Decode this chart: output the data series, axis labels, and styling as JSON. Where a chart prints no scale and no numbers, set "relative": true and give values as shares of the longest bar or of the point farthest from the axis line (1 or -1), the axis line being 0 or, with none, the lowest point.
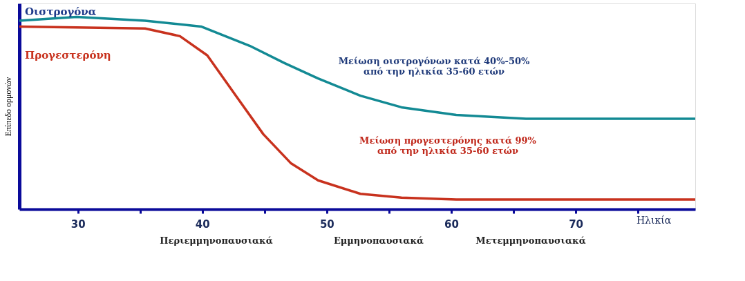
{
  "chart_data": {
    "type": "line",
    "relative": true,
    "xlabel": "Ηλικία",
    "ylabel": "Επίπεδο ορμονών",
    "xlim": [
      25.3,
      79.6
    ],
    "xticks": [
      30,
      {
        "value": 35,
        "label": null
      },
      40,
      {
        "value": 45,
        "label": null
      },
      50,
      {
        "value": 55,
        "label": null
      },
      60,
      {
        "value": 65,
        "label": null
      },
      70,
      {
        "value": 75,
        "label": null
      }
    ],
    "grid": false,
    "legend": false,
    "marker": "none",
    "line_style": "solid",
    "series": [
      {
        "name": "Οιστρογόνα",
        "color": "#138a94",
        "x": [
          25.3,
          29.9,
          35.4,
          39.9,
          43.8,
          46.6,
          49.3,
          52.7,
          56.0,
          60.4,
          66.0,
          79.6
        ],
        "values": [
          0.98,
          1.0,
          0.98,
          0.95,
          0.85,
          0.76,
          0.68,
          0.59,
          0.53,
          0.49,
          0.47,
          0.47
        ]
      },
      {
        "name": "Προγεστερόνη",
        "color": "#c8321e",
        "x": [
          25.3,
          35.4,
          38.2,
          40.4,
          42.7,
          44.9,
          47.1,
          49.3,
          52.7,
          56.0,
          60.4,
          79.6
        ],
        "values": [
          0.95,
          0.94,
          0.9,
          0.8,
          0.59,
          0.39,
          0.24,
          0.15,
          0.08,
          0.06,
          0.05,
          0.05
        ]
      }
    ],
    "annotations": [
      "Μείωση οιστρογόνων κατά 40%-50%\nαπό την ηλικία 35-60 ετών",
      "Μείωση προγεστερόνης κατά 99%\nαπό την ηλικία 35-60 ετών",
      "Περιεμμηνοπαυσιακά",
      "Εμμηνοπαυσιακά",
      "Μετεμμηνοπαυσιακά"
    ]
  }
}
